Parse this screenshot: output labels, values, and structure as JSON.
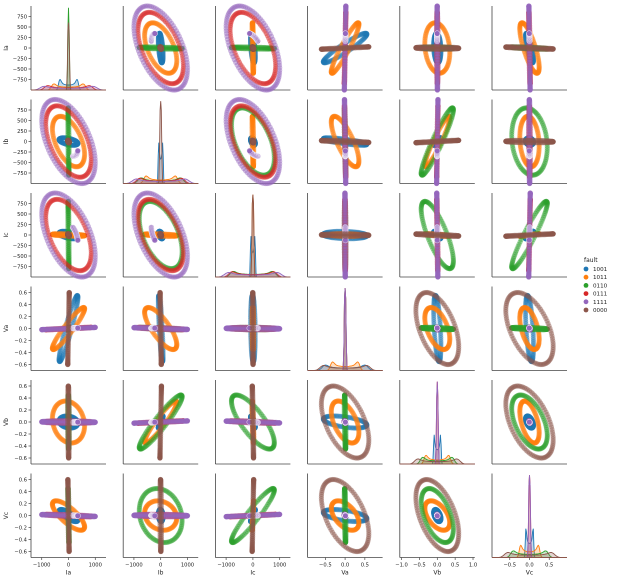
{
  "chart_data": {
    "type": "scatter",
    "kind": "pairplot",
    "variables": [
      "Ia",
      "Ib",
      "Ic",
      "Va",
      "Vb",
      "Vc"
    ],
    "current_ticks": [
      -750,
      -500,
      -250,
      0,
      250,
      500,
      750
    ],
    "current_xticks": [
      -1000,
      0,
      1000
    ],
    "current_xlim": [
      -1400,
      1400
    ],
    "current_ylim": [
      -1000,
      1000
    ],
    "voltage_ticks": [
      -0.6,
      -0.4,
      -0.2,
      0.0,
      0.2,
      0.4,
      0.6
    ],
    "voltage_ylim": [
      -0.7,
      0.7
    ],
    "voltage_xticks": [
      -0.5,
      0.0,
      0.5
    ],
    "vb_xticks": [
      -1.0,
      -0.5,
      0.0,
      0.5,
      1.0
    ],
    "voltage_xlim": [
      -0.95,
      0.95
    ],
    "vb_xlim": [
      -1.05,
      1.05
    ],
    "diagonal": "kde",
    "legend": {
      "title": "fault",
      "placement": "right",
      "entries": [
        {
          "label": "1001",
          "color": "#1f77b4"
        },
        {
          "label": "1011",
          "color": "#ff7f0e"
        },
        {
          "label": "0110",
          "color": "#2ca02c"
        },
        {
          "label": "0111",
          "color": "#d62728"
        },
        {
          "label": "1111",
          "color": "#9467bd"
        },
        {
          "label": "0000",
          "color": "#8c564b"
        }
      ]
    },
    "series": [
      {
        "name": "1001",
        "color": "#1f77b4",
        "I_amp": 350,
        "V_amp": 0.08,
        "orient": "narrow-a"
      },
      {
        "name": "1011",
        "color": "#ff7f0e",
        "I_amp": 600,
        "V_amp": 0.35,
        "orient": "mixed"
      },
      {
        "name": "0110",
        "color": "#2ca02c",
        "I_amp": 800,
        "V_amp": 0.45,
        "orient": "bc"
      },
      {
        "name": "0111",
        "color": "#d62728",
        "I_amp": 850,
        "V_amp": 0.02,
        "orient": "abc"
      },
      {
        "name": "1111",
        "color": "#9467bd",
        "I_amp": 1000,
        "V_amp": 0.02,
        "orient": "abc"
      },
      {
        "name": "0000",
        "color": "#8c564b",
        "I_amp": 30,
        "V_amp": 0.6,
        "orient": "abc"
      }
    ]
  }
}
